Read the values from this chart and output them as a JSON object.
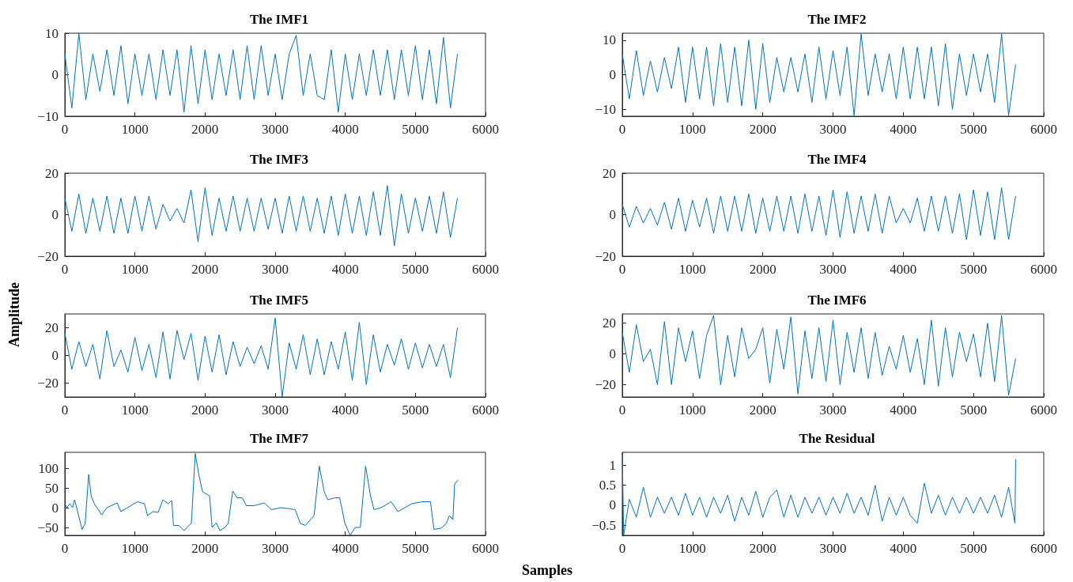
{
  "chart_data": [
    {
      "type": "line",
      "title": "The IMF1",
      "marker": "none",
      "line_style": "solid",
      "grid": false,
      "xlim": [
        0,
        6000
      ],
      "xticks": [
        0,
        1000,
        2000,
        3000,
        4000,
        5000,
        6000
      ],
      "ylim": [
        -10,
        10
      ],
      "yticks": [
        -10,
        0,
        10
      ],
      "x": [
        0,
        100,
        200,
        300,
        400,
        500,
        600,
        700,
        800,
        900,
        1000,
        1100,
        1200,
        1300,
        1400,
        1500,
        1600,
        1700,
        1800,
        1900,
        2000,
        2100,
        2200,
        2300,
        2400,
        2500,
        2600,
        2700,
        2800,
        2900,
        3000,
        3100,
        3200,
        3300,
        3400,
        3500,
        3600,
        3700,
        3800,
        3900,
        4000,
        4100,
        4200,
        4300,
        4400,
        4500,
        4600,
        4700,
        4800,
        4900,
        5000,
        5100,
        5200,
        5300,
        5400,
        5500,
        5600
      ],
      "series": [
        {
          "color": "#0072bd",
          "values": [
            5,
            -8,
            10,
            -6,
            5,
            -4,
            6,
            -5,
            7,
            -7,
            5,
            -5,
            5,
            -6,
            6,
            -5,
            6,
            -9,
            7,
            -7,
            6,
            -6,
            5,
            -5,
            6,
            -6,
            7,
            -6,
            7,
            -5,
            5,
            -6,
            5,
            9.5,
            -5,
            5,
            -5,
            -6,
            6,
            -9,
            5,
            -6,
            5,
            -5,
            6,
            -5,
            6,
            -6,
            6,
            -5,
            7,
            -6,
            6,
            -7,
            9,
            -8,
            5
          ]
        }
      ]
    },
    {
      "type": "line",
      "title": "The IMF2",
      "marker": "none",
      "line_style": "solid",
      "grid": false,
      "xlim": [
        0,
        6000
      ],
      "xticks": [
        0,
        1000,
        2000,
        3000,
        4000,
        5000,
        6000
      ],
      "ylim": [
        -12,
        12
      ],
      "yticks": [
        -10,
        0,
        10
      ],
      "x": [
        0,
        100,
        200,
        300,
        400,
        500,
        600,
        700,
        800,
        900,
        1000,
        1100,
        1200,
        1300,
        1400,
        1500,
        1600,
        1700,
        1800,
        1900,
        2000,
        2100,
        2200,
        2300,
        2400,
        2500,
        2600,
        2700,
        2800,
        2900,
        3000,
        3100,
        3200,
        3300,
        3400,
        3500,
        3600,
        3700,
        3800,
        3900,
        4000,
        4100,
        4200,
        4300,
        4400,
        4500,
        4600,
        4700,
        4800,
        4900,
        5000,
        5100,
        5200,
        5300,
        5400,
        5500,
        5600
      ],
      "series": [
        {
          "color": "#0072bd",
          "values": [
            6,
            -7,
            7,
            -6,
            4,
            -5,
            5,
            -4,
            8,
            -8,
            8,
            -7,
            8,
            -9,
            9,
            -8,
            8,
            -9,
            10,
            -10,
            9,
            -8,
            5,
            -5,
            5,
            -5,
            6,
            -8,
            8,
            -7,
            7,
            -6,
            8,
            -11.8,
            11.8,
            -6,
            6,
            -5,
            6,
            -7,
            8,
            -7,
            8,
            -7,
            8,
            -9,
            9,
            -10,
            6,
            -6,
            6,
            -5,
            6,
            -8,
            11.8,
            -11.8,
            3
          ]
        }
      ]
    },
    {
      "type": "line",
      "title": "The IMF3",
      "marker": "none",
      "line_style": "solid",
      "grid": false,
      "xlim": [
        0,
        6000
      ],
      "xticks": [
        0,
        1000,
        2000,
        3000,
        4000,
        5000,
        6000
      ],
      "ylim": [
        -20,
        20
      ],
      "yticks": [
        -20,
        0,
        20
      ],
      "x": [
        0,
        100,
        200,
        300,
        400,
        500,
        600,
        700,
        800,
        900,
        1000,
        1100,
        1200,
        1300,
        1400,
        1500,
        1600,
        1700,
        1800,
        1900,
        2000,
        2100,
        2200,
        2300,
        2400,
        2500,
        2600,
        2700,
        2800,
        2900,
        3000,
        3100,
        3200,
        3300,
        3400,
        3500,
        3600,
        3700,
        3800,
        3900,
        4000,
        4100,
        4200,
        4300,
        4400,
        4500,
        4600,
        4700,
        4800,
        4900,
        5000,
        5100,
        5200,
        5300,
        5400,
        5500,
        5600
      ],
      "series": [
        {
          "color": "#0072bd",
          "values": [
            8,
            -8,
            10,
            -9,
            8,
            -8,
            9,
            -9,
            8,
            -9,
            9,
            -8,
            9,
            -7,
            5,
            -3,
            3,
            -4,
            12,
            -13,
            13,
            -10,
            8,
            -8,
            9,
            -8,
            8,
            -8,
            8,
            -7,
            8,
            -9,
            9,
            -8,
            9,
            -8,
            8,
            -9,
            9,
            -10,
            10,
            -9,
            9,
            -10,
            11,
            -10,
            14,
            -15,
            10,
            -9,
            8,
            -8,
            9,
            -9,
            11,
            -11,
            8
          ]
        }
      ]
    },
    {
      "type": "line",
      "title": "The IMF4",
      "marker": "none",
      "line_style": "solid",
      "grid": false,
      "xlim": [
        0,
        6000
      ],
      "xticks": [
        0,
        1000,
        2000,
        3000,
        4000,
        5000,
        6000
      ],
      "ylim": [
        -20,
        20
      ],
      "yticks": [
        -20,
        0,
        20
      ],
      "x": [
        0,
        100,
        200,
        300,
        400,
        500,
        600,
        700,
        800,
        900,
        1000,
        1100,
        1200,
        1300,
        1400,
        1500,
        1600,
        1700,
        1800,
        1900,
        2000,
        2100,
        2200,
        2300,
        2400,
        2500,
        2600,
        2700,
        2800,
        2900,
        3000,
        3100,
        3200,
        3300,
        3400,
        3500,
        3600,
        3700,
        3800,
        3900,
        4000,
        4100,
        4200,
        4300,
        4400,
        4500,
        4600,
        4700,
        4800,
        4900,
        5000,
        5100,
        5200,
        5300,
        5400,
        5500,
        5600
      ],
      "series": [
        {
          "color": "#0072bd",
          "values": [
            5,
            -6,
            4,
            -4,
            3,
            -5,
            6,
            -7,
            8,
            -8,
            7,
            -6,
            8,
            -9,
            9,
            -8,
            9,
            -8,
            10,
            -9,
            8,
            -8,
            9,
            -8,
            9,
            -9,
            10,
            -8,
            9,
            -10,
            12,
            -11,
            11,
            -9,
            9,
            -8,
            10,
            -9,
            9,
            -4,
            3,
            -4,
            8,
            -8,
            9,
            -8,
            9,
            -9,
            10,
            -12,
            12,
            -10,
            11,
            -12,
            13,
            -12,
            9
          ]
        }
      ]
    },
    {
      "type": "line",
      "title": "The IMF5",
      "ylabel": "Amplitude",
      "marker": "none",
      "line_style": "solid",
      "grid": false,
      "xlim": [
        0,
        6000
      ],
      "xticks": [
        0,
        1000,
        2000,
        3000,
        4000,
        5000,
        6000
      ],
      "ylim": [
        -30,
        30
      ],
      "yticks": [
        -20,
        0,
        20
      ],
      "x": [
        0,
        100,
        200,
        300,
        400,
        500,
        600,
        700,
        800,
        900,
        1000,
        1100,
        1200,
        1300,
        1400,
        1500,
        1600,
        1700,
        1800,
        1900,
        2000,
        2100,
        2200,
        2300,
        2400,
        2500,
        2600,
        2700,
        2800,
        2900,
        3000,
        3100,
        3200,
        3300,
        3400,
        3500,
        3600,
        3700,
        3800,
        3900,
        4000,
        4100,
        4200,
        4300,
        4400,
        4500,
        4600,
        4700,
        4800,
        4900,
        5000,
        5100,
        5200,
        5300,
        5400,
        5500,
        5600
      ],
      "series": [
        {
          "color": "#0072bd",
          "values": [
            16,
            -10,
            10,
            -8,
            8,
            -17,
            18,
            -8,
            4,
            -12,
            13,
            -11,
            8,
            -16,
            17,
            -17,
            18,
            -3,
            16,
            -18,
            14,
            -12,
            15,
            -14,
            10,
            -8,
            6,
            -6,
            7,
            -10,
            27,
            -30,
            9,
            -10,
            15,
            -14,
            12,
            -14,
            10,
            -10,
            17,
            -18,
            24,
            -21,
            15,
            -12,
            8,
            -7,
            12,
            -10,
            9,
            -9,
            8,
            -8,
            8,
            -16,
            20
          ]
        }
      ]
    },
    {
      "type": "line",
      "title": "The IMF6",
      "marker": "none",
      "line_style": "solid",
      "grid": false,
      "xlim": [
        0,
        6000
      ],
      "xticks": [
        0,
        1000,
        2000,
        3000,
        4000,
        5000,
        6000
      ],
      "ylim": [
        -28,
        26
      ],
      "yticks": [
        -20,
        0,
        20
      ],
      "x": [
        0,
        100,
        200,
        300,
        400,
        500,
        600,
        700,
        800,
        900,
        1000,
        1100,
        1200,
        1300,
        1400,
        1500,
        1600,
        1700,
        1800,
        1900,
        2000,
        2100,
        2200,
        2300,
        2400,
        2500,
        2600,
        2700,
        2800,
        2900,
        3000,
        3100,
        3200,
        3300,
        3400,
        3500,
        3600,
        3700,
        3800,
        3900,
        4000,
        4100,
        4200,
        4300,
        4400,
        4500,
        4600,
        4700,
        4800,
        4900,
        5000,
        5100,
        5200,
        5300,
        5400,
        5500,
        5600
      ],
      "series": [
        {
          "color": "#0072bd",
          "values": [
            14,
            -12,
            19,
            -5,
            3,
            -20,
            21,
            -20,
            17,
            -5,
            15,
            -16,
            12,
            25,
            -20,
            12,
            -15,
            17,
            -3,
            3,
            17,
            -19,
            16,
            -10,
            24,
            -26,
            15,
            -16,
            17,
            -18,
            22,
            -20,
            14,
            -12,
            17,
            -16,
            14,
            -14,
            5,
            -10,
            12,
            -12,
            10,
            -20,
            22,
            -21,
            17,
            -15,
            14,
            -5,
            13,
            -15,
            20,
            -18,
            25,
            -27,
            -3
          ]
        }
      ]
    },
    {
      "type": "line",
      "title": "The IMF7",
      "marker": "none",
      "line_style": "solid",
      "grid": false,
      "xlim": [
        0,
        6000
      ],
      "xticks": [
        0,
        1000,
        2000,
        3000,
        4000,
        5000,
        6000
      ],
      "ylim": [
        -70,
        140
      ],
      "yticks": [
        -50,
        0,
        50,
        100
      ],
      "x": [
        0,
        30,
        70,
        110,
        140,
        245,
        290,
        340,
        375,
        420,
        525,
        600,
        745,
        800,
        940,
        1035,
        1135,
        1180,
        1255,
        1330,
        1400,
        1475,
        1525,
        1550,
        1625,
        1700,
        1770,
        1805,
        1860,
        1915,
        1965,
        2065,
        2100,
        2160,
        2210,
        2285,
        2330,
        2395,
        2455,
        2530,
        2590,
        2700,
        2845,
        2945,
        3090,
        3285,
        3360,
        3430,
        3555,
        3630,
        3700,
        3750,
        3850,
        3920,
        3995,
        4070,
        4140,
        4215,
        4290,
        4360,
        4410,
        4510,
        4655,
        4750,
        4950,
        5095,
        5215,
        5265,
        5365,
        5440,
        5485,
        5535,
        5560,
        5610
      ],
      "series": [
        {
          "color": "#0072bd",
          "values": [
            10,
            0,
            10,
            0,
            20,
            -55,
            -40,
            84,
            30,
            10,
            -18,
            0,
            12,
            -10,
            5,
            15,
            10,
            -20,
            -10,
            -12,
            20,
            10,
            18,
            -45,
            -45,
            -58,
            -45,
            -40,
            137,
            80,
            40,
            30,
            -50,
            -38,
            -58,
            -50,
            -40,
            42,
            25,
            25,
            5,
            5,
            12,
            -5,
            0,
            -5,
            -40,
            -45,
            -20,
            105,
            40,
            20,
            25,
            25,
            -40,
            -70,
            -50,
            -50,
            105,
            30,
            -5,
            0,
            15,
            -10,
            10,
            15,
            15,
            -55,
            -52,
            -40,
            -20,
            -30,
            60,
            70
          ]
        }
      ]
    },
    {
      "type": "line",
      "title": "The Residual",
      "xlabel": "Samples",
      "marker": "none",
      "line_style": "solid",
      "grid": false,
      "xlim": [
        0,
        6000
      ],
      "xticks": [
        0,
        1000,
        2000,
        3000,
        4000,
        5000,
        6000
      ],
      "ylim": [
        -0.75,
        1.32
      ],
      "yticks": [
        -0.5,
        0,
        0.5,
        1
      ],
      "x": [
        0,
        20,
        100,
        200,
        300,
        400,
        500,
        600,
        700,
        800,
        900,
        1000,
        1100,
        1200,
        1300,
        1400,
        1500,
        1600,
        1700,
        1800,
        1900,
        2000,
        2100,
        2200,
        2300,
        2400,
        2500,
        2600,
        2700,
        2800,
        2900,
        3000,
        3100,
        3200,
        3300,
        3400,
        3500,
        3600,
        3700,
        3800,
        3900,
        4000,
        4100,
        4200,
        4300,
        4400,
        4500,
        4600,
        4700,
        4800,
        4900,
        5000,
        5100,
        5200,
        5300,
        5400,
        5500,
        5590,
        5600
      ],
      "series": [
        {
          "color": "#0072bd",
          "values": [
            1.3,
            -0.75,
            0.15,
            -0.3,
            0.45,
            -0.3,
            0.2,
            -0.2,
            0.2,
            -0.25,
            0.3,
            -0.25,
            0.2,
            -0.3,
            0.2,
            -0.2,
            0.25,
            -0.4,
            0.2,
            -0.25,
            0.35,
            -0.3,
            0.2,
            0.38,
            -0.3,
            0.25,
            -0.3,
            0.2,
            -0.2,
            0.2,
            -0.25,
            0.2,
            -0.2,
            0.3,
            -0.2,
            0.2,
            -0.25,
            0.5,
            -0.4,
            0.2,
            -0.25,
            0.2,
            -0.25,
            -0.45,
            0.55,
            -0.2,
            0.25,
            -0.25,
            0.2,
            -0.2,
            0.2,
            -0.2,
            0.2,
            -0.2,
            0.25,
            -0.3,
            0.45,
            -0.45,
            1.15
          ]
        }
      ]
    }
  ]
}
